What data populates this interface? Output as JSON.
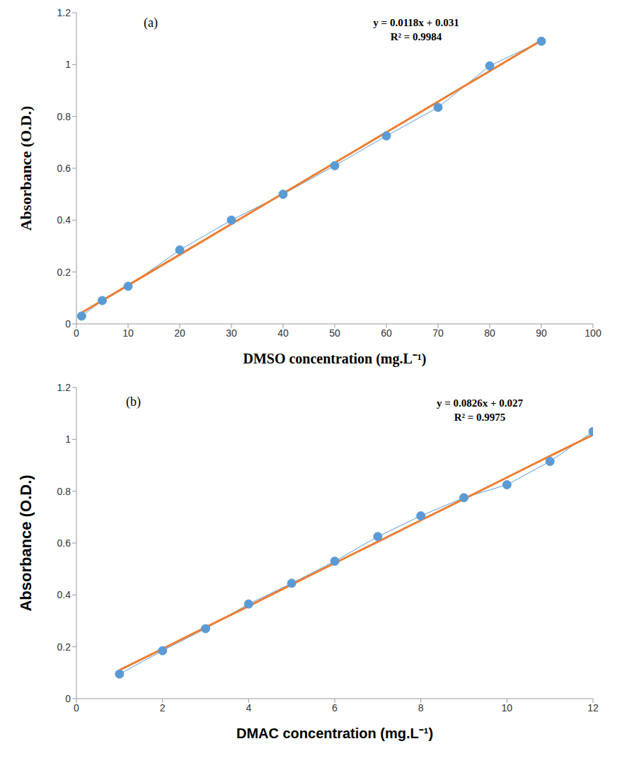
{
  "chart_data": [
    {
      "type": "line",
      "title": "(a)",
      "annotations": [
        "y = 0.0118x + 0.031",
        "R² = 0.9984"
      ],
      "x_label": "DMSO concentration (mg.L⁻¹)",
      "y_label": "Absorbance (O.D.)",
      "x": [
        1,
        5,
        10,
        20,
        30,
        40,
        50,
        60,
        70,
        80,
        90
      ],
      "series": [
        {
          "color": "#5b9bd5",
          "marker": "circle",
          "line_style": "solid",
          "values": [
            0.03,
            0.09,
            0.145,
            0.285,
            0.4,
            0.5,
            0.61,
            0.725,
            0.835,
            0.995,
            1.09
          ]
        },
        {
          "color": "#ed7d31",
          "line_style": "solid",
          "values": [
            0.043,
            0.09,
            0.149,
            0.267,
            0.385,
            0.503,
            0.621,
            0.739,
            0.857,
            0.975,
            1.093
          ]
        }
      ],
      "xlim": [
        0,
        100
      ],
      "xticks": [
        0,
        10,
        20,
        30,
        40,
        50,
        60,
        70,
        80,
        90,
        100
      ],
      "ylim": [
        0,
        1.2
      ],
      "yticks": [
        0,
        0.2,
        0.4,
        0.6,
        0.8,
        1,
        1.2
      ],
      "grid": false
    },
    {
      "type": "line",
      "title": "(b)",
      "annotations": [
        "y = 0.0826x + 0.027",
        "R² = 0.9975"
      ],
      "x_label": "DMAC concentration (mg.L⁻¹)",
      "y_label": "Absorbance (O.D.)",
      "x": [
        1,
        2,
        3,
        4,
        5,
        6,
        7,
        8,
        9,
        10,
        11,
        12
      ],
      "series": [
        {
          "color": "#5b9bd5",
          "marker": "circle",
          "line_style": "solid",
          "values": [
            0.095,
            0.185,
            0.27,
            0.365,
            0.445,
            0.53,
            0.625,
            0.705,
            0.775,
            0.825,
            0.915,
            1.03
          ]
        },
        {
          "color": "#ed7d31",
          "line_style": "solid",
          "values": [
            0.11,
            0.192,
            0.275,
            0.357,
            0.44,
            0.523,
            0.605,
            0.688,
            0.77,
            0.853,
            0.936,
            1.018
          ]
        }
      ],
      "xlim": [
        0,
        12
      ],
      "xticks": [
        0,
        2,
        4,
        6,
        8,
        10,
        12
      ],
      "ylim": [
        0,
        1.2
      ],
      "yticks": [
        0,
        0.2,
        0.4,
        0.6,
        0.8,
        1,
        1.2
      ],
      "grid": false
    }
  ]
}
